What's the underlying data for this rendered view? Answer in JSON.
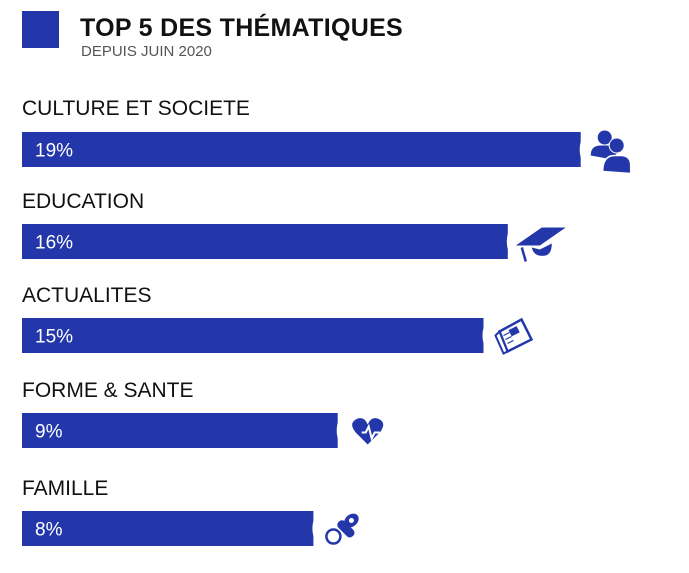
{
  "header": {
    "title": "TOP 5 DES THÉMATIQUES",
    "subtitle": "DEPUIS JUIN 2020"
  },
  "chart_data": {
    "type": "bar",
    "orientation": "horizontal",
    "title": "TOP 5 DES THÉMATIQUES",
    "subtitle": "DEPUIS JUIN 2020",
    "categories": [
      "CULTURE ET SOCIETE",
      "EDUCATION",
      "ACTUALITES",
      "FORME & SANTE",
      "FAMILLE"
    ],
    "values": [
      19,
      16,
      15,
      9,
      8
    ],
    "data_labels": [
      "19%",
      "16%",
      "15%",
      "9%",
      "8%"
    ],
    "icons": [
      "people-icon",
      "graduation-cap-icon",
      "newspaper-icon",
      "heart-pulse-icon",
      "pacifier-icon"
    ],
    "unit": "%",
    "grid": false,
    "color": "#2337AB"
  }
}
